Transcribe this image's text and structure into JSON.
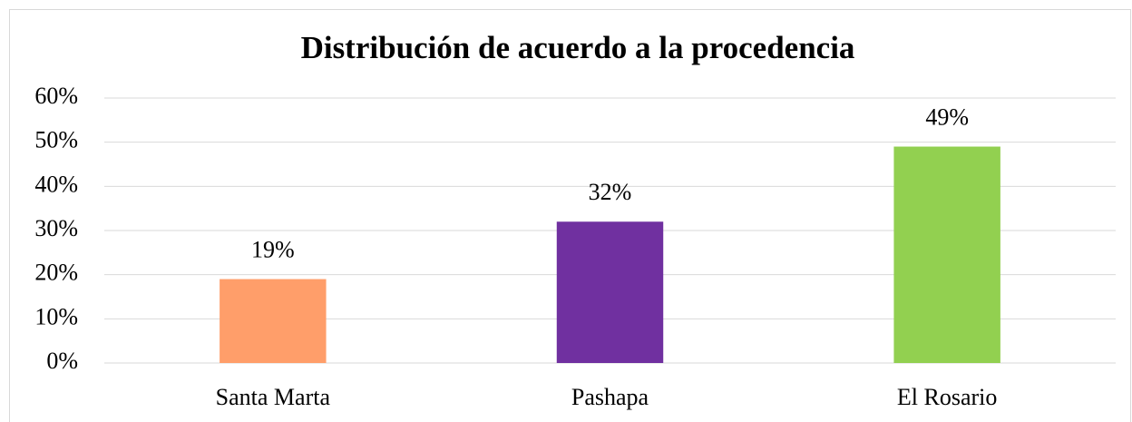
{
  "chart_data": {
    "type": "bar",
    "title": "Distribución de acuerdo a la procedencia",
    "categories": [
      "Santa Marta",
      "Pashapa",
      "El Rosario"
    ],
    "values": [
      19,
      32,
      49
    ],
    "value_labels": [
      "19%",
      "32%",
      "49%"
    ],
    "colors": [
      "#ff9e6a",
      "#7030a0",
      "#92d050"
    ],
    "ylim": [
      0,
      60
    ],
    "yticks": [
      {
        "value": 0,
        "label": "0%"
      },
      {
        "value": 10,
        "label": "10%"
      },
      {
        "value": 20,
        "label": "20%"
      },
      {
        "value": 30,
        "label": "30%"
      },
      {
        "value": 40,
        "label": "40%"
      },
      {
        "value": 50,
        "label": "50%"
      },
      {
        "value": 60,
        "label": "60%"
      }
    ],
    "grid": true
  }
}
